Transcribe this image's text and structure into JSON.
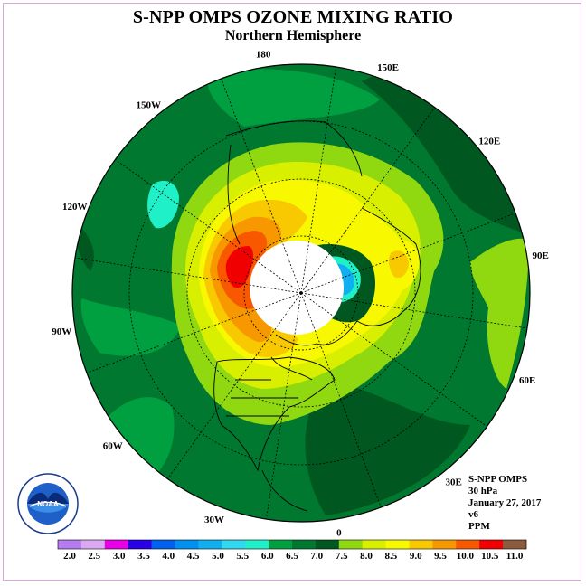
{
  "title": "S-NPP OMPS OZONE MIXING RATIO",
  "subtitle": "Northern Hemisphere",
  "longitude_labels": [
    {
      "text": "90E",
      "lon": 90
    },
    {
      "text": "60E",
      "lon": 60
    },
    {
      "text": "30E",
      "lon": 30
    },
    {
      "text": "0",
      "lon": 0
    },
    {
      "text": "30W",
      "lon": -30
    },
    {
      "text": "60W",
      "lon": -60
    },
    {
      "text": "90W",
      "lon": -90
    },
    {
      "text": "120W",
      "lon": -120
    },
    {
      "text": "150W",
      "lon": -150
    },
    {
      "text": "180",
      "lon": 180
    },
    {
      "text": "150E",
      "lon": 150
    },
    {
      "text": "120E",
      "lon": 120
    }
  ],
  "info": {
    "instrument": "S-NPP OMPS",
    "level": "30 hPa",
    "date": "January 27, 2017",
    "version": "v6",
    "units": "PPM"
  },
  "logo": {
    "text": "NOAA",
    "ring_text": "NATIONAL OCEANIC AND ATMOSPHERIC ADMINISTRATION · U.S. DEPARTMENT OF COMMERCE"
  },
  "colorbar": {
    "labels": [
      "2.0",
      "2.5",
      "3.0",
      "3.5",
      "4.0",
      "4.5",
      "5.0",
      "5.5",
      "6.0",
      "6.5",
      "7.0",
      "7.5",
      "8.0",
      "8.5",
      "9.0",
      "9.5",
      "10.0",
      "10.5",
      "11.0"
    ],
    "colors": [
      "#b77bf0",
      "#dca8f2",
      "#e800e8",
      "#2a00e8",
      "#0060f0",
      "#0090f0",
      "#10b0f0",
      "#30d8f0",
      "#20f0c8",
      "#00a040",
      "#007830",
      "#005820",
      "#90d810",
      "#d8f000",
      "#f8f800",
      "#f8c800",
      "#f89800",
      "#f85800",
      "#f00000",
      "#8c5a3c"
    ]
  },
  "map_colors": {
    "ocean_base": "#007830",
    "band_dark": "#005820",
    "band_65": "#00a040",
    "band_75": "#90d810",
    "band_8": "#d8f000",
    "band_85": "#f8f800",
    "band_9": "#f8c800",
    "band_95": "#f89800",
    "band_10": "#f85800",
    "band_105": "#f00000",
    "low_cyan": "#20f0c8",
    "low_blue": "#10b0f0",
    "polar_hole": "#ffffff"
  }
}
